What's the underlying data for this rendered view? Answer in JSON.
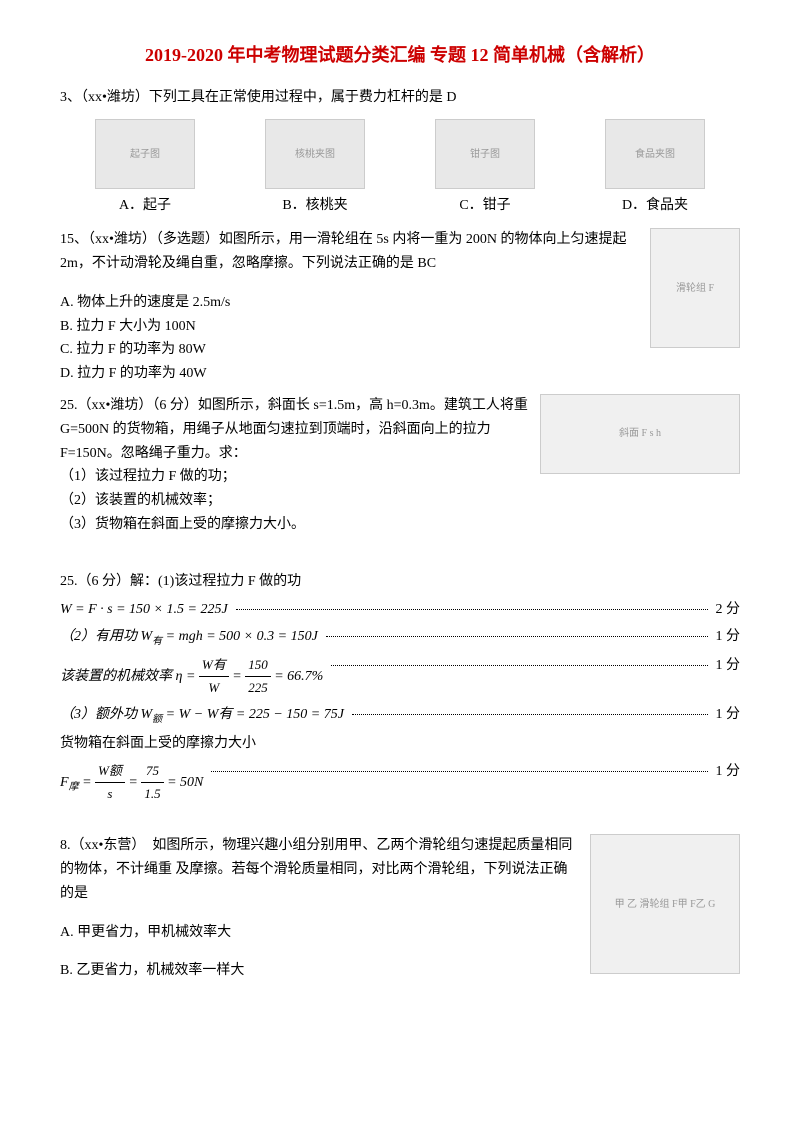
{
  "title": "2019-2020 年中考物理试题分类汇编 专题 12 简单机械（含解析）",
  "q3": {
    "header": "3、（xx•潍坊）下列工具在正常使用过程中，属于费力杠杆的是 D",
    "options": {
      "a": "A．起子",
      "b": "B．核桃夹",
      "c": "C．钳子",
      "d": "D．食品夹"
    },
    "img_labels": {
      "a": "起子图",
      "b": "核桃夹图",
      "c": "钳子图",
      "d": "食品夹图"
    }
  },
  "q15": {
    "header": "15、（xx•潍坊）（多选题）如图所示，用一滑轮组在 5s 内将一重为 200N 的物体向上匀速提起 2m，不计动滑轮及绳自重，忽略摩擦。下列说法正确的是 BC",
    "a": "A. 物体上升的速度是 2.5m/s",
    "b": "B. 拉力 F 大小为 100N",
    "c": "C. 拉力 F 的功率为 80W",
    "d": "D. 拉力 F 的功率为 40W",
    "img_label": "滑轮组 F"
  },
  "q25": {
    "header": "25.（xx•潍坊）（6 分）如图所示，斜面长 s=1.5m，高 h=0.3m。建筑工人将重 G=500N 的货物箱，用绳子从地面匀速拉到顶端时，沿斜面向上的拉力 F=150N。忽略绳子重力。求：",
    "sub1": "（1）该过程拉力 F 做的功；",
    "sub2": "（2）该装置的机械效率；",
    "sub3": "（3）货物箱在斜面上受的摩擦力大小。",
    "img_label": "斜面 F s h"
  },
  "a25": {
    "header": "25.（6 分）解：(1)该过程拉力 F 做的功",
    "line1": "W = F · s = 150 × 1.5 = 225J",
    "score1": "2 分",
    "line2_prefix": "（2）有用功 W",
    "line2_rest": " = mgh = 500 × 0.3 = 150J",
    "score2": "1 分",
    "line3_prefix": "该装置的机械效率 η = ",
    "line3_rest": " = 66.7%",
    "frac_top1": "W有",
    "frac_bot1": "W",
    "frac_top2": "150",
    "frac_bot2": "225",
    "score3": "1 分",
    "line4_prefix": "（3）额外功 W",
    "line4_rest": " = W − W有 = 225 − 150 = 75J",
    "score4": "1 分",
    "line5": "货物箱在斜面上受的摩擦力大小",
    "line6_prefix": "F",
    "line6_mid": " = ",
    "frac_top3": "W额",
    "frac_bot3": "s",
    "frac_top4": "75",
    "frac_bot4": "1.5",
    "line6_end": " = 50N",
    "score5": "1 分"
  },
  "q8": {
    "header": "8.（xx•东营）　如图所示，物理兴趣小组分别用甲、乙两个滑轮组匀速提起质量相同的物体，不计绳重 及摩擦。若每个滑轮质量相同，对比两个滑轮组，下列说法正确的是",
    "a": "A. 甲更省力，甲机械效率大",
    "b": "B. 乙更省力，机械效率一样大",
    "img_label": "甲 乙 滑轮组 F甲 F乙 G"
  },
  "subscripts": {
    "you": "有",
    "e": "额",
    "mo": "摩"
  }
}
